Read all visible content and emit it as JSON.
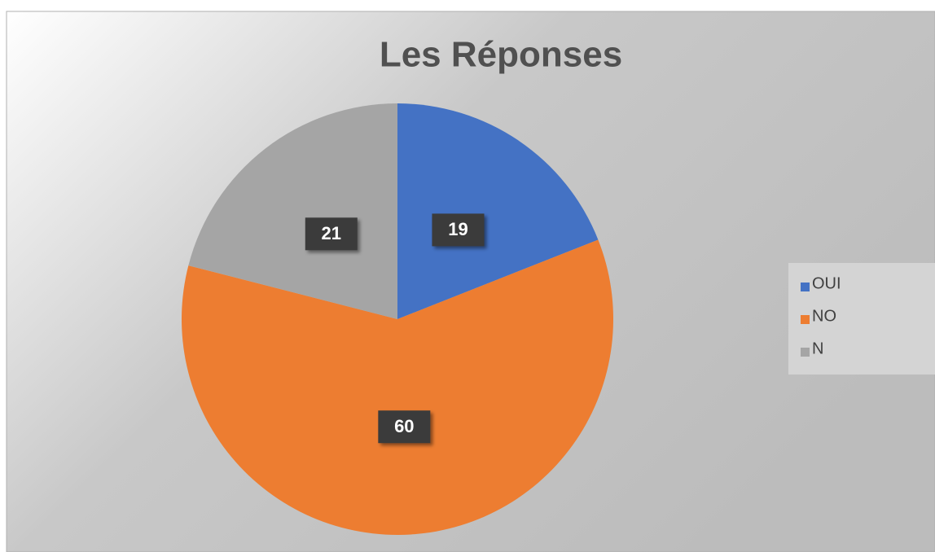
{
  "chart_data": {
    "type": "pie",
    "title": "Les Réponses",
    "categories": [
      "OUI",
      "NO",
      "N"
    ],
    "values": [
      19,
      60,
      21
    ],
    "colors": [
      "#4472c4",
      "#ed7d31",
      "#a5a5a5"
    ],
    "legend": "right"
  }
}
